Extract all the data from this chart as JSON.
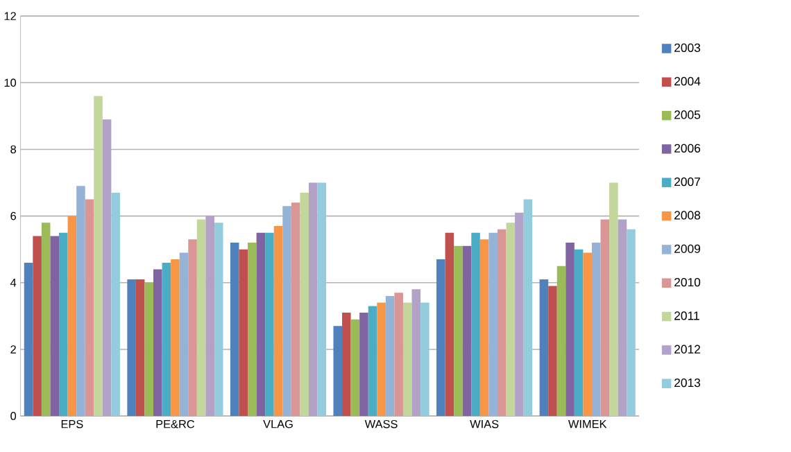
{
  "chart_data": {
    "type": "bar",
    "categories": [
      "EPS",
      "PE&RC",
      "VLAG",
      "WASS",
      "WIAS",
      "WIMEK"
    ],
    "ylim": [
      0,
      12
    ],
    "yticks": [
      0,
      2,
      4,
      6,
      8,
      10,
      12
    ],
    "grid": "y",
    "legend": "right",
    "series": [
      {
        "name": "2003",
        "color": "#4f81bd",
        "values": [
          4.6,
          4.1,
          5.2,
          2.7,
          4.7,
          4.1
        ]
      },
      {
        "name": "2004",
        "color": "#c0504d",
        "values": [
          5.4,
          4.1,
          5.0,
          3.1,
          5.5,
          3.9
        ]
      },
      {
        "name": "2005",
        "color": "#9bbb59",
        "values": [
          5.8,
          4.0,
          5.2,
          2.9,
          5.1,
          4.5
        ]
      },
      {
        "name": "2006",
        "color": "#8064a2",
        "values": [
          5.4,
          4.4,
          5.5,
          3.1,
          5.1,
          5.2
        ]
      },
      {
        "name": "2007",
        "color": "#4bacc6",
        "values": [
          5.5,
          4.6,
          5.5,
          3.3,
          5.5,
          5.0
        ]
      },
      {
        "name": "2008",
        "color": "#f79646",
        "values": [
          6.0,
          4.7,
          5.7,
          3.4,
          5.3,
          4.9
        ]
      },
      {
        "name": "2009",
        "color": "#95b3d7",
        "values": [
          6.9,
          4.9,
          6.3,
          3.6,
          5.5,
          5.2
        ]
      },
      {
        "name": "2010",
        "color": "#d99694",
        "values": [
          6.5,
          5.3,
          6.4,
          3.7,
          5.6,
          5.9
        ]
      },
      {
        "name": "2011",
        "color": "#c3d69b",
        "values": [
          9.6,
          5.9,
          6.7,
          3.4,
          5.8,
          7.0
        ]
      },
      {
        "name": "2012",
        "color": "#b3a2c7",
        "values": [
          8.9,
          6.0,
          7.0,
          3.8,
          6.1,
          5.9
        ]
      },
      {
        "name": "2013",
        "color": "#93cddd",
        "values": [
          6.7,
          5.8,
          7.0,
          3.4,
          6.5,
          5.6
        ]
      }
    ]
  }
}
